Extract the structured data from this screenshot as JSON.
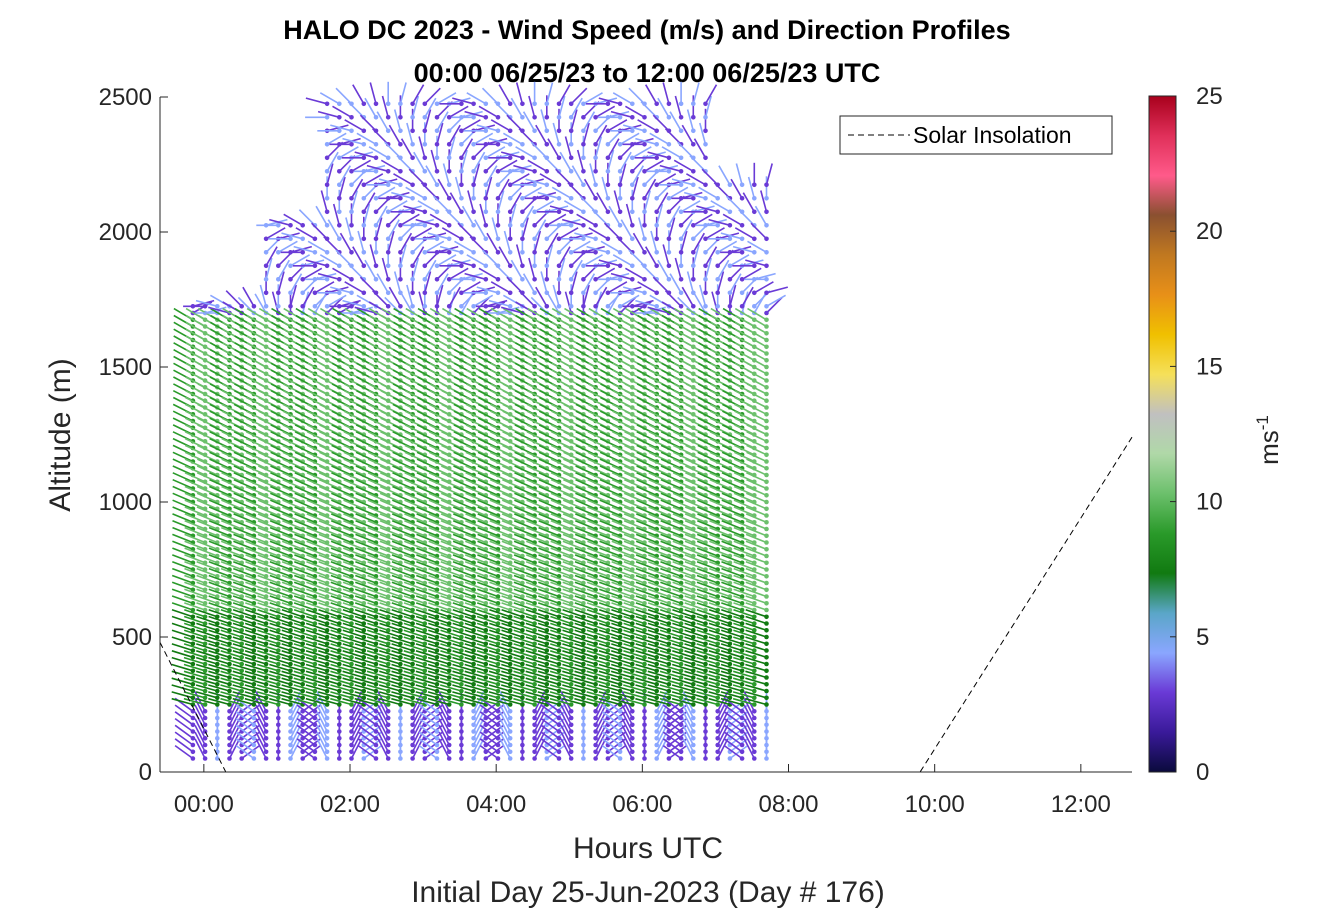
{
  "chart_data": {
    "type": "scatter",
    "title_line1": "HALO DC 2023 - Wind Speed (m/s) and Direction Profiles",
    "title_line2": "00:00 06/25/23 to 12:00 06/25/23  UTC",
    "xlabel": "Hours UTC",
    "subxlabel": "Initial Day 25-Jun-2023 (Day # 176)",
    "ylabel": "Altitude (m)",
    "x_ticks": [
      "00:00",
      "02:00",
      "04:00",
      "06:00",
      "08:00",
      "10:00",
      "12:00"
    ],
    "y_ticks": [
      "0",
      "500",
      "1000",
      "1500",
      "2000",
      "2500"
    ],
    "xlim_hours": [
      -0.6,
      12.7
    ],
    "ylim": [
      0,
      2500
    ],
    "colorbar": {
      "label": "ms",
      "label_exponent": "-1",
      "ticks": [
        "0",
        "5",
        "10",
        "15",
        "20",
        "25"
      ],
      "range": [
        0,
        25
      ],
      "colors": [
        "#0a0a3c",
        "#3a1a9a",
        "#6a3ad6",
        "#8aa6ff",
        "#5aa6c8",
        "#117a11",
        "#2a9a2a",
        "#6cc06c",
        "#b0d8a8",
        "#c0c0c0",
        "#f5e05a",
        "#f0c000",
        "#e89018",
        "#c07820",
        "#8a5030",
        "#ff5a8a",
        "#e0305a",
        "#a8001c"
      ]
    },
    "legend": {
      "position": "top-right",
      "entries": [
        "Solar Insolation"
      ]
    },
    "solar_insolation": {
      "style": "dashed",
      "x_hours": [
        -0.6,
        0.3,
        9.8,
        12.7
      ],
      "y": [
        480,
        0,
        0,
        1240
      ]
    },
    "wind_profiles": {
      "x_hours_start": -0.15,
      "x_hours_end": 7.75,
      "profile_step_hours": 0.167,
      "altitude_step_m": 25,
      "data_top_m": [
        1760,
        2030,
        2500,
        2500,
        2500,
        2500,
        2500,
        2500,
        2220
      ],
      "note_speed_m_s": {
        "below_250m": 3,
        "250_to_600m": 7,
        "600_to_1700m": 9,
        "1700_to_2500m": 3
      }
    }
  }
}
